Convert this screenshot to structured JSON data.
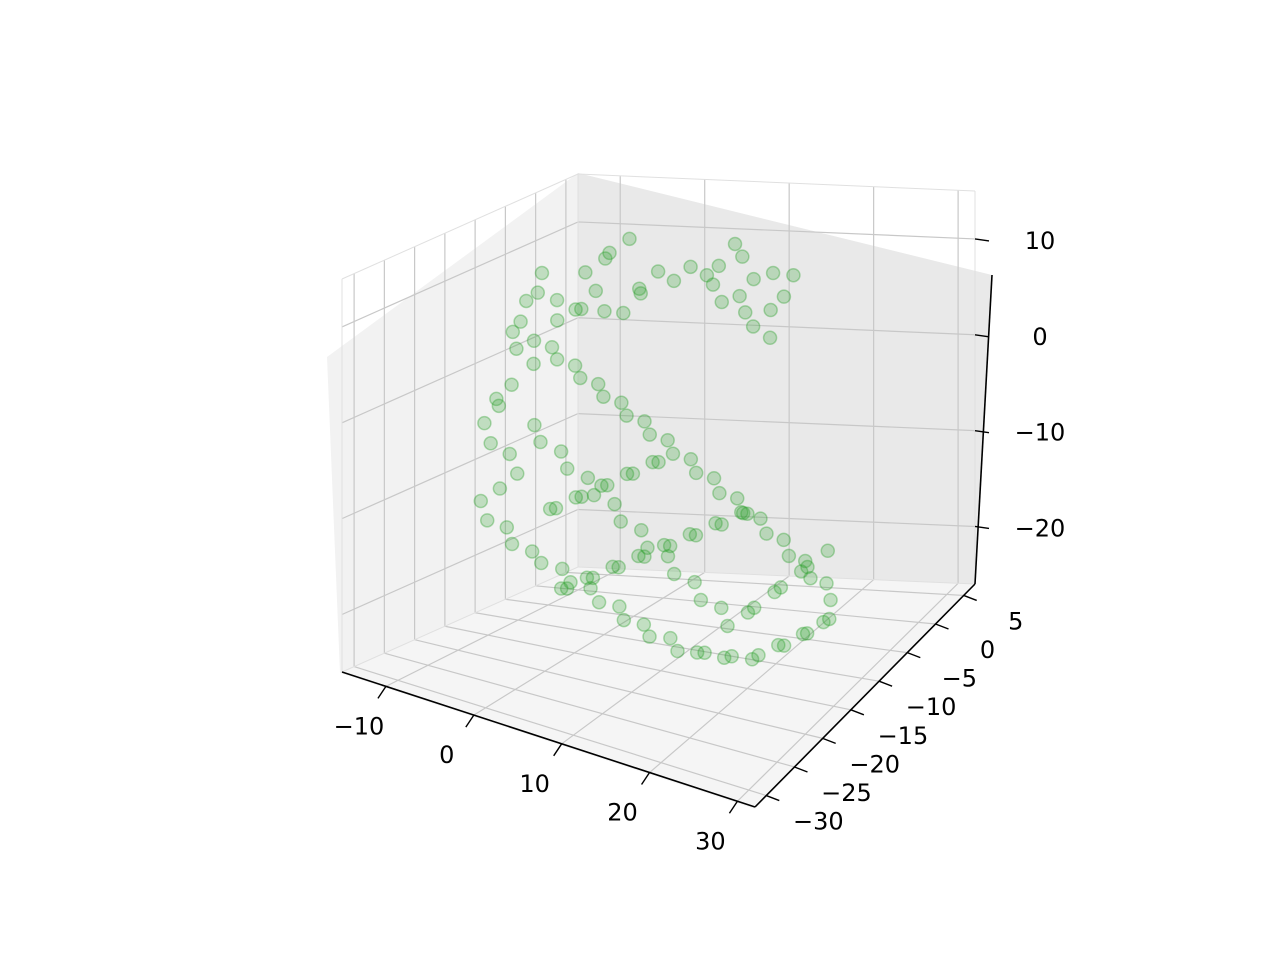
{
  "chart_data": {
    "type": "scatter",
    "projection": "3d",
    "title": "",
    "xlabel": "",
    "ylabel": "",
    "zlabel": "",
    "xlim": [
      -15,
      32
    ],
    "ylim": [
      -32,
      7
    ],
    "zlim": [
      -26,
      15
    ],
    "grid": true,
    "legend": "none",
    "marker_color": "#2ca02c",
    "marker_alpha": 0.25,
    "x_ticks": [
      {
        "value": -10,
        "label": "−10"
      },
      {
        "value": 0,
        "label": "0"
      },
      {
        "value": 10,
        "label": "10"
      },
      {
        "value": 20,
        "label": "20"
      },
      {
        "value": 30,
        "label": "30"
      }
    ],
    "y_ticks": [
      {
        "value": -30,
        "label": "−30"
      },
      {
        "value": -25,
        "label": "−25"
      },
      {
        "value": -20,
        "label": "−20"
      },
      {
        "value": -15,
        "label": "−15"
      },
      {
        "value": -10,
        "label": "−10"
      },
      {
        "value": -5,
        "label": "−5"
      },
      {
        "value": 0,
        "label": "0"
      },
      {
        "value": 5,
        "label": "5"
      }
    ],
    "z_ticks": [
      {
        "value": -20,
        "label": "−20"
      },
      {
        "value": -10,
        "label": "−10"
      },
      {
        "value": 0,
        "label": "0"
      },
      {
        "value": 10,
        "label": "10"
      }
    ],
    "series": [
      {
        "points": [
          [
            10.9,
            -3.6,
            13.5
          ],
          [
            10.3,
            -5.5,
            12.0
          ],
          [
            12.3,
            -4.4,
            12.7
          ],
          [
            14.1,
            -5.1,
            10.9
          ],
          [
            15.9,
            -4.4,
            11.4
          ],
          [
            17.4,
            -3.1,
            10.7
          ],
          [
            17.3,
            -4.6,
            9.2
          ],
          [
            16.9,
            -6.3,
            8.6
          ],
          [
            17.3,
            -7.0,
            6.1
          ],
          [
            16.0,
            -8.0,
            7.6
          ],
          [
            14.2,
            -6.7,
            8.2
          ],
          [
            12.8,
            -5.6,
            9.2
          ],
          [
            11.8,
            -7.2,
            9.2
          ],
          [
            10.3,
            -6.5,
            10.5
          ],
          [
            8.7,
            -5.2,
            10.7
          ],
          [
            7.0,
            -5.5,
            11.5
          ],
          [
            5.6,
            -6.3,
            10.2
          ],
          [
            4.1,
            -6.8,
            11.2
          ],
          [
            3.0,
            -8.4,
            9.9
          ],
          [
            2.0,
            -6.7,
            8.6
          ],
          [
            1.0,
            -8.2,
            7.0
          ],
          [
            -0.3,
            -9.5,
            7.5
          ],
          [
            -2.0,
            -8.5,
            9.0
          ],
          [
            -3.2,
            -9.2,
            7.2
          ],
          [
            -4.7,
            -8.0,
            6.5
          ],
          [
            -6.0,
            -9.2,
            5.6
          ],
          [
            -7.0,
            -7.8,
            7.1
          ],
          [
            -8.2,
            -9.3,
            8.2
          ],
          [
            -8.9,
            -7.6,
            9.6
          ],
          [
            -10.1,
            -8.5,
            6.8
          ],
          [
            -9.5,
            -10.3,
            5.3
          ],
          [
            -10.9,
            -9.6,
            3.8
          ],
          [
            -9.5,
            -11.0,
            2.7
          ],
          [
            -8.2,
            -10.0,
            1.0
          ],
          [
            -9.5,
            -11.8,
            -0.8
          ],
          [
            -10.5,
            -12.9,
            -2.1
          ],
          [
            -11.4,
            -11.2,
            -3.5
          ],
          [
            -12.1,
            -12.6,
            -5.0
          ],
          [
            -10.6,
            -13.7,
            -6.5
          ],
          [
            -9.3,
            -12.4,
            -7.8
          ],
          [
            -7.8,
            -13.3,
            -9.3
          ],
          [
            -8.7,
            -14.9,
            -10.5
          ],
          [
            -9.8,
            -16.5,
            -11.5
          ],
          [
            -8.5,
            -17.3,
            -13.0
          ],
          [
            -7.0,
            -16.2,
            -13.8
          ],
          [
            -5.5,
            -17.5,
            -14.8
          ],
          [
            -4.0,
            -16.3,
            -15.7
          ],
          [
            -2.4,
            -17.1,
            -16.3
          ],
          [
            -1.0,
            -15.6,
            -17.2
          ],
          [
            0.5,
            -16.4,
            -18.0
          ],
          [
            2.0,
            -15.2,
            -18.8
          ],
          [
            3.6,
            -16.1,
            -19.6
          ],
          [
            5.2,
            -15.0,
            -20.2
          ],
          [
            6.6,
            -16.3,
            -20.8
          ],
          [
            8.1,
            -15.1,
            -21.5
          ],
          [
            9.5,
            -16.2,
            -22.0
          ],
          [
            11.1,
            -15.0,
            -22.4
          ],
          [
            12.6,
            -16.0,
            -23.0
          ],
          [
            14.0,
            -14.7,
            -23.5
          ],
          [
            15.6,
            -15.8,
            -22.7
          ],
          [
            17.0,
            -14.5,
            -23.6
          ],
          [
            18.6,
            -15.6,
            -22.6
          ],
          [
            20.1,
            -14.3,
            -23.3
          ],
          [
            21.5,
            -15.3,
            -22.1
          ],
          [
            23.0,
            -14.1,
            -21.4
          ],
          [
            24.4,
            -15.2,
            -20.6
          ],
          [
            25.8,
            -14.0,
            -19.8
          ],
          [
            27.0,
            -15.1,
            -18.9
          ],
          [
            28.1,
            -13.9,
            -18.2
          ],
          [
            29.3,
            -14.7,
            -17.2
          ],
          [
            28.4,
            -13.1,
            -16.3
          ],
          [
            27.2,
            -12.0,
            -15.4
          ],
          [
            26.0,
            -13.0,
            -14.5
          ],
          [
            24.6,
            -11.8,
            -13.6
          ],
          [
            23.3,
            -12.7,
            -12.8
          ],
          [
            21.9,
            -11.5,
            -12.0
          ],
          [
            20.5,
            -12.4,
            -11.1
          ],
          [
            19.0,
            -11.2,
            -10.4
          ],
          [
            17.6,
            -12.1,
            -9.6
          ],
          [
            16.1,
            -10.9,
            -8.9
          ],
          [
            14.7,
            -11.9,
            -8.1
          ],
          [
            13.2,
            -10.6,
            -7.4
          ],
          [
            11.8,
            -11.6,
            -6.6
          ],
          [
            10.3,
            -10.3,
            -6.0
          ],
          [
            8.9,
            -11.3,
            -5.2
          ],
          [
            7.4,
            -10.0,
            -4.6
          ],
          [
            6.0,
            -11.0,
            -3.8
          ],
          [
            4.5,
            -9.7,
            -3.2
          ],
          [
            3.1,
            -10.7,
            -2.4
          ],
          [
            1.6,
            -9.4,
            -1.8
          ],
          [
            0.2,
            -10.4,
            -1.0
          ],
          [
            -1.3,
            -9.1,
            -0.4
          ],
          [
            -2.7,
            -10.1,
            0.4
          ],
          [
            -4.2,
            -8.8,
            1.0
          ],
          [
            -5.6,
            -9.8,
            1.8
          ],
          [
            -7.1,
            -8.5,
            2.4
          ],
          [
            -8.5,
            -9.5,
            3.2
          ],
          [
            -7.2,
            -11.3,
            -4.8
          ],
          [
            -5.8,
            -12.3,
            -6.0
          ],
          [
            -4.3,
            -11.0,
            -7.2
          ],
          [
            -2.9,
            -12.0,
            -8.4
          ],
          [
            -1.4,
            -10.7,
            -9.6
          ],
          [
            0.0,
            -11.7,
            -10.8
          ],
          [
            1.5,
            -10.4,
            -12.0
          ],
          [
            2.9,
            -11.4,
            -13.2
          ],
          [
            4.4,
            -10.1,
            -14.4
          ],
          [
            5.8,
            -11.1,
            -15.6
          ],
          [
            7.3,
            -9.8,
            -16.8
          ],
          [
            8.7,
            -10.8,
            -18.0
          ],
          [
            10.2,
            -9.5,
            -19.2
          ],
          [
            11.6,
            -10.5,
            -20.4
          ],
          [
            13.1,
            -9.2,
            -21.6
          ],
          [
            14.5,
            -10.2,
            -22.8
          ],
          [
            16.0,
            -8.9,
            -21.8
          ],
          [
            17.4,
            -9.9,
            -20.6
          ],
          [
            18.9,
            -8.6,
            -19.4
          ],
          [
            20.3,
            -9.6,
            -18.2
          ],
          [
            21.8,
            -8.3,
            -17.0
          ],
          [
            23.2,
            -9.3,
            -15.8
          ],
          [
            24.7,
            -8.0,
            -14.6
          ],
          [
            -3.5,
            -14.0,
            -12.0
          ],
          [
            -2.0,
            -15.2,
            -11.2
          ],
          [
            -0.6,
            -13.9,
            -10.3
          ],
          [
            0.9,
            -15.1,
            -9.5
          ],
          [
            2.3,
            -13.8,
            -8.6
          ],
          [
            3.8,
            -15.0,
            -7.8
          ],
          [
            5.2,
            -13.7,
            -6.9
          ],
          [
            6.7,
            -14.9,
            -6.1
          ],
          [
            8.1,
            -13.6,
            -5.2
          ],
          [
            9.6,
            -14.8,
            -4.4
          ],
          [
            1.2,
            -19.0,
            -17.5
          ],
          [
            2.7,
            -20.2,
            -16.7
          ],
          [
            4.1,
            -18.9,
            -15.8
          ],
          [
            5.6,
            -20.1,
            -15.0
          ],
          [
            7.0,
            -18.8,
            -14.1
          ],
          [
            8.5,
            -20.0,
            -13.3
          ],
          [
            9.9,
            -18.7,
            -12.4
          ],
          [
            11.4,
            -19.9,
            -11.6
          ],
          [
            12.8,
            -18.6,
            -10.7
          ],
          [
            14.3,
            -19.8,
            -9.9
          ],
          [
            15.7,
            -18.5,
            -9.0
          ],
          [
            17.2,
            -19.7,
            -8.2
          ],
          [
            18.6,
            -18.4,
            -7.3
          ],
          [
            20.1,
            -19.6,
            -6.5
          ],
          [
            21.5,
            -18.3,
            -5.6
          ],
          [
            23.0,
            -19.5,
            -4.8
          ],
          [
            -6.0,
            -4.5,
            9.0
          ],
          [
            -4.5,
            -3.3,
            10.2
          ],
          [
            -3.1,
            -4.6,
            11.4
          ],
          [
            -1.6,
            -3.4,
            12.6
          ]
        ]
      }
    ]
  }
}
